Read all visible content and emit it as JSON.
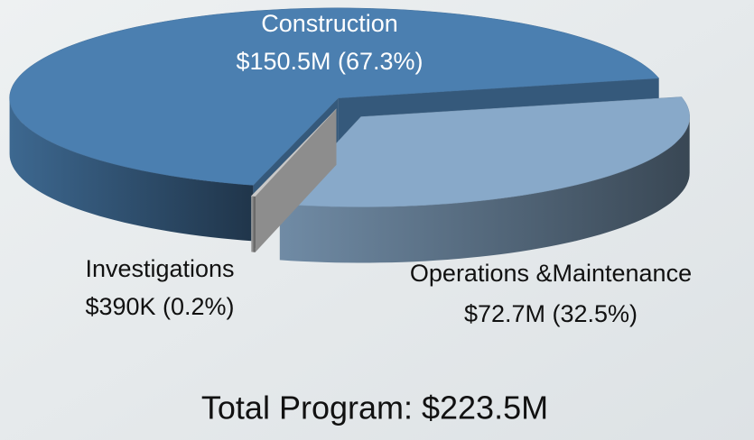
{
  "chart_data": {
    "type": "pie",
    "categories": [
      "Construction",
      "Operations &Maintenance",
      "Investigations"
    ],
    "values": [
      67.3,
      32.5,
      0.2
    ],
    "value_labels": [
      "$150.5M (67.3%)",
      "$72.7M (32.5%)",
      "$390K (0.2%)"
    ],
    "colors": [
      "#4b7fb0",
      "#88a9c9",
      "#c9c9c9"
    ],
    "annotation": "Total Program: $223.5M"
  }
}
